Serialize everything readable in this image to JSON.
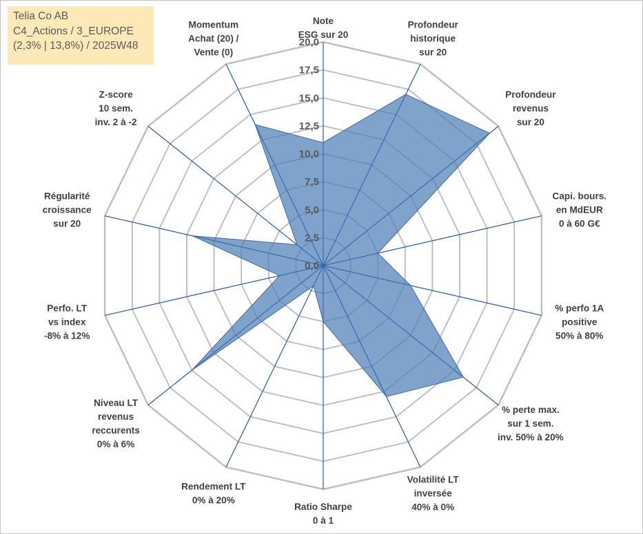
{
  "info": {
    "company": "Telia Co AB",
    "category": "C4_Actions / 3_EUROPE",
    "period": "(2,3% | 13,8%) / 2025W48"
  },
  "chart_data": {
    "type": "radar",
    "title": "",
    "rmin": 0,
    "rmax": 20,
    "tick_step": 2.5,
    "ticks": [
      "0,0",
      "2,5",
      "5,0",
      "7,5",
      "10,0",
      "12,5",
      "15,0",
      "17,5",
      "20,0"
    ],
    "axes": [
      {
        "label": "Note\nESG sur 20",
        "value": 11
      },
      {
        "label": "Profondeur\nhistorique\nsur 20",
        "value": 17
      },
      {
        "label": "Profondeur\nrevenus\nsur 20",
        "value": 19
      },
      {
        "label": "Capi. bours.\nen MdEUR\n0 à 60 G€",
        "value": 5
      },
      {
        "label": "% perfo 1A\npositive\n50% à 80%",
        "value": 8
      },
      {
        "label": "% perte max.\nsur 1 sem.\ninv. 50% à 20%",
        "value": 16
      },
      {
        "label": "Volatilité LT\ninversée\n40% à 0%",
        "value": 13
      },
      {
        "label": "Ratio Sharpe\n0 à 1",
        "value": 5
      },
      {
        "label": "Rendement LT\n0% à 20%",
        "value": 2
      },
      {
        "label": "Niveau LT\nrevenus\nreccurents\n0% à 6%",
        "value": 15
      },
      {
        "label": "Perfo. LT\nvs index\n-8% à 12%",
        "value": 4
      },
      {
        "label": "Régularité\ncroissance\nsur 20",
        "value": 12
      },
      {
        "label": "Z-score\n10 sem.\ninv. 2 à -2",
        "value": 3
      },
      {
        "label": "Momentum\nAchat (20) /\nVente (0)",
        "value": 14
      }
    ],
    "series": [
      {
        "name": "Telia Co AB",
        "color": "#4f7fb8"
      }
    ],
    "grid_color": "#bfbfbf",
    "spoke_color": "#2e5fa8",
    "fill_color": "#4f7fb8"
  }
}
